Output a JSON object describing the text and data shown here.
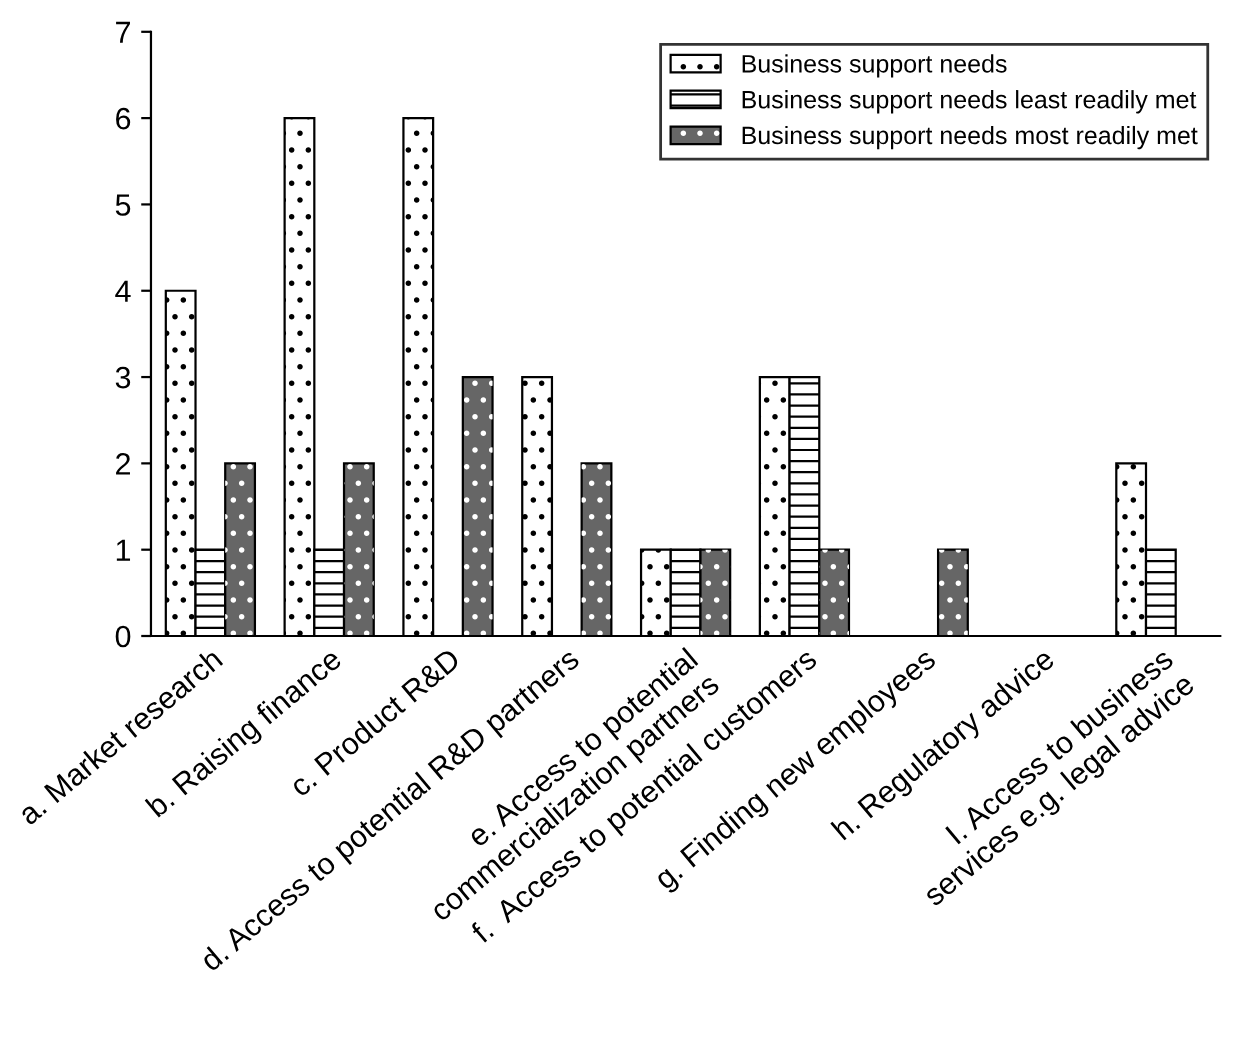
{
  "chart_data": {
    "type": "bar",
    "categories": [
      "a. Market research",
      "b. Raising finance",
      "c. Product R&D",
      "d. Access to potential R&D partners",
      "e. Access to potential\ncommercialization partners",
      "f.  Access to potential customers",
      "g. Finding new employees",
      "h. Regulatory advice",
      "I. Access to business\nservices e.g. legal advice"
    ],
    "series": [
      {
        "name": "Business support needs",
        "color": "#ffffff",
        "values": [
          4,
          6,
          6,
          3,
          1,
          3,
          0,
          0,
          2
        ]
      },
      {
        "name": "Business support needs least readily met",
        "color": "#ffffff",
        "values": [
          1,
          1,
          0,
          0,
          1,
          3,
          0,
          0,
          1
        ]
      },
      {
        "name": "Business support needs most readily met",
        "color": "#666666",
        "values": [
          2,
          2,
          3,
          2,
          1,
          1,
          1,
          0,
          0
        ]
      }
    ],
    "ylim": [
      0,
      7
    ],
    "yticks": [
      0,
      1,
      2,
      3,
      4,
      5,
      6,
      7
    ],
    "grid": false,
    "legend": "top right"
  }
}
